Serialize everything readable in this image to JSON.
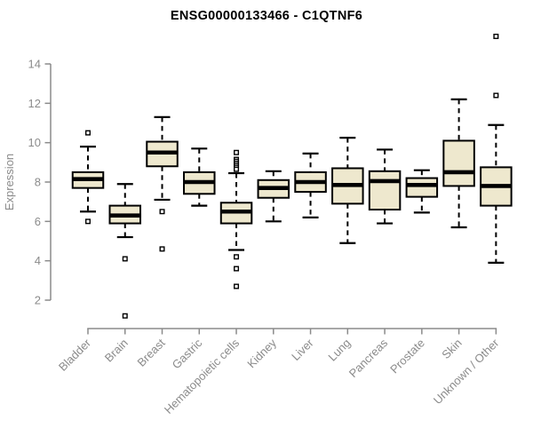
{
  "figure": {
    "background": "#ffffff"
  },
  "colors": {
    "box_fill": "#eee8ce",
    "box_stroke": "#000000",
    "median": "#000000",
    "whisker": "#000000",
    "outlier_fill": "#ffffff",
    "outlier_stroke": "#000000",
    "axis": "#8b8b8b",
    "tick_label": "#8b8b8b",
    "title": "#000000"
  },
  "chart_data": {
    "type": "boxplot",
    "title": "ENSG00000133466 - C1QTNF6",
    "xlabel": "",
    "ylabel": "Expression",
    "ylim": [
      2,
      14
    ],
    "yticks": [
      2,
      4,
      6,
      8,
      10,
      12,
      14
    ],
    "grid": false,
    "legend": "none",
    "whisker_style": "dashed",
    "categories": [
      "Bladder",
      "Brain",
      "Breast",
      "Gastric",
      "Hematopoietic cells",
      "Kidney",
      "Liver",
      "Lung",
      "Pancreas",
      "Prostate",
      "Skin",
      "Unknown / Other"
    ],
    "boxes": [
      {
        "category": "Bladder",
        "whisker_low": 6.5,
        "q1": 7.7,
        "median": 8.15,
        "q3": 8.5,
        "whisker_high": 9.8,
        "outliers": [
          10.5,
          6.0
        ]
      },
      {
        "category": "Brain",
        "whisker_low": 5.2,
        "q1": 5.9,
        "median": 6.3,
        "q3": 6.8,
        "whisker_high": 7.9,
        "outliers": [
          4.1,
          1.2
        ]
      },
      {
        "category": "Breast",
        "whisker_low": 7.1,
        "q1": 8.8,
        "median": 9.5,
        "q3": 10.05,
        "whisker_high": 11.3,
        "outliers": [
          6.5,
          4.6
        ]
      },
      {
        "category": "Gastric",
        "whisker_low": 6.8,
        "q1": 7.4,
        "median": 8.0,
        "q3": 8.5,
        "whisker_high": 9.7,
        "outliers": []
      },
      {
        "category": "Hematopoietic cells",
        "whisker_low": 4.55,
        "q1": 5.9,
        "median": 6.5,
        "q3": 6.95,
        "whisker_high": 8.45,
        "outliers": [
          9.5,
          9.15,
          9.05,
          8.95,
          8.85,
          8.75,
          8.65,
          4.2,
          3.6,
          2.7
        ]
      },
      {
        "category": "Kidney",
        "whisker_low": 6.0,
        "q1": 7.2,
        "median": 7.7,
        "q3": 8.1,
        "whisker_high": 8.55,
        "outliers": []
      },
      {
        "category": "Liver",
        "whisker_low": 6.2,
        "q1": 7.5,
        "median": 8.0,
        "q3": 8.5,
        "whisker_high": 9.45,
        "outliers": []
      },
      {
        "category": "Lung",
        "whisker_low": 4.9,
        "q1": 6.9,
        "median": 7.85,
        "q3": 8.7,
        "whisker_high": 10.25,
        "outliers": []
      },
      {
        "category": "Pancreas",
        "whisker_low": 5.9,
        "q1": 6.6,
        "median": 8.05,
        "q3": 8.55,
        "whisker_high": 9.65,
        "outliers": []
      },
      {
        "category": "Prostate",
        "whisker_low": 6.45,
        "q1": 7.25,
        "median": 7.85,
        "q3": 8.2,
        "whisker_high": 8.6,
        "outliers": []
      },
      {
        "category": "Skin",
        "whisker_low": 5.7,
        "q1": 7.8,
        "median": 8.5,
        "q3": 10.1,
        "whisker_high": 12.2,
        "outliers": []
      },
      {
        "category": "Unknown / Other",
        "whisker_low": 3.9,
        "q1": 6.8,
        "median": 7.8,
        "q3": 8.75,
        "whisker_high": 10.9,
        "outliers": [
          15.4,
          12.4
        ]
      }
    ]
  }
}
